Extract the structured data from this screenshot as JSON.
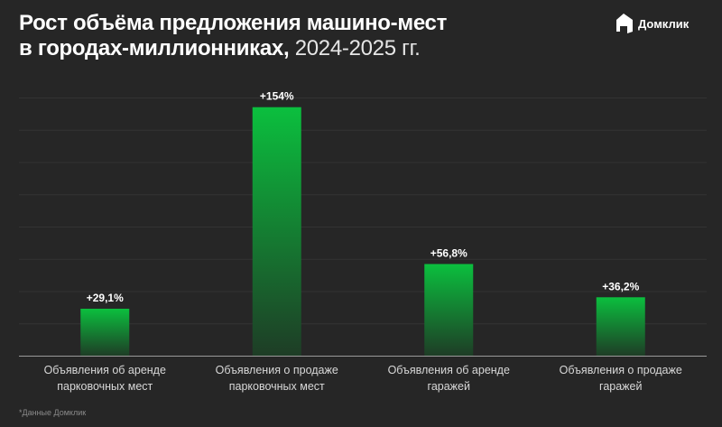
{
  "header": {
    "title_bold_line1": "Рост объёма предложения машино-мест",
    "title_bold_line2": "в городах-миллионниках,",
    "title_light": "2024-2025 гг.",
    "brand": "Домклик"
  },
  "footnote": "*Данные Домклик",
  "colors": {
    "bar_top": "#0bbf3e",
    "bar_bottom": "#1e3d26",
    "background": "#262626"
  },
  "chart_data": {
    "type": "bar",
    "title": "Рост объёма предложения машино-мест в городах-миллионниках, 2024-2025 гг.",
    "categories": [
      [
        "Объявления об аренде",
        "парковочных мест"
      ],
      [
        "Объявления о продаже",
        "парковочных мест"
      ],
      [
        "Объявления об аренде",
        "гаражей"
      ],
      [
        "Объявления о продаже",
        "гаражей"
      ]
    ],
    "values": [
      29.1,
      154,
      56.8,
      36.2
    ],
    "data_labels": [
      "+29,1%",
      "+154%",
      "+56,8%",
      "+36,2%"
    ],
    "ylim": [
      0,
      160
    ],
    "grid_step": 20,
    "grid": true,
    "xlabel": "",
    "ylabel": ""
  }
}
